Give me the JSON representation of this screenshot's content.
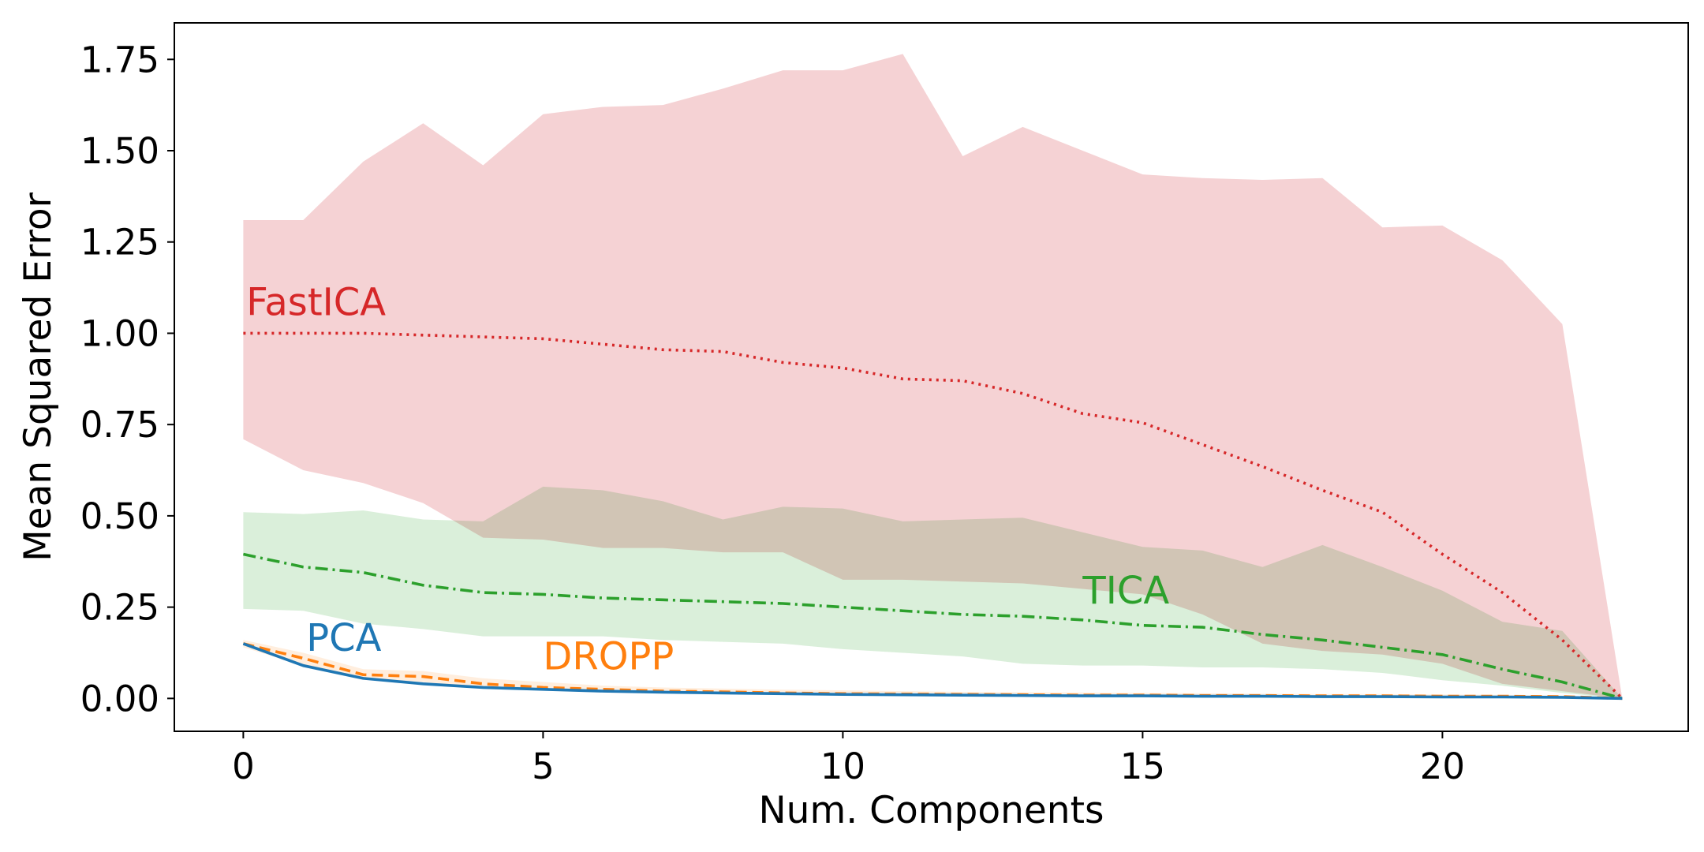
{
  "chart_data": {
    "type": "line",
    "xlabel": "Num. Components",
    "ylabel": "Mean Squared Error",
    "xlim": [
      -1.15,
      24.1
    ],
    "ylim": [
      -0.09,
      1.85
    ],
    "xticks": [
      0,
      5,
      10,
      15,
      20
    ],
    "yticks": [
      0.0,
      0.25,
      0.5,
      0.75,
      1.0,
      1.25,
      1.5,
      1.75
    ],
    "ytick_labels": [
      "0.00",
      "0.25",
      "0.50",
      "0.75",
      "1.00",
      "1.25",
      "1.50",
      "1.75"
    ],
    "grid": false,
    "legend": "none",
    "x": [
      0,
      1,
      2,
      3,
      4,
      5,
      6,
      7,
      8,
      9,
      10,
      11,
      12,
      13,
      14,
      15,
      16,
      17,
      18,
      19,
      20,
      21,
      22,
      23
    ],
    "series": [
      {
        "name": "FastICA",
        "color": "#d62728",
        "linestyle": "dotted",
        "values": [
          1.0,
          1.0,
          1.0,
          0.995,
          0.99,
          0.985,
          0.97,
          0.955,
          0.95,
          0.92,
          0.905,
          0.875,
          0.87,
          0.835,
          0.78,
          0.755,
          0.695,
          0.635,
          0.57,
          0.51,
          0.395,
          0.29,
          0.16,
          0.0
        ],
        "band_low": [
          0.71,
          0.625,
          0.59,
          0.535,
          0.44,
          0.435,
          0.412,
          0.412,
          0.4,
          0.4,
          0.325,
          0.325,
          0.32,
          0.315,
          0.3,
          0.285,
          0.23,
          0.15,
          0.13,
          0.12,
          0.095,
          0.04,
          0.02,
          0.0
        ],
        "band_high": [
          1.31,
          1.31,
          1.47,
          1.575,
          1.46,
          1.6,
          1.62,
          1.625,
          1.67,
          1.72,
          1.72,
          1.765,
          1.485,
          1.565,
          1.5,
          1.435,
          1.425,
          1.42,
          1.425,
          1.29,
          1.295,
          1.2,
          1.025,
          0.0
        ]
      },
      {
        "name": "TICA",
        "color": "#2ca02c",
        "linestyle": "dashdot",
        "values": [
          0.395,
          0.36,
          0.345,
          0.31,
          0.29,
          0.285,
          0.275,
          0.27,
          0.265,
          0.26,
          0.25,
          0.24,
          0.23,
          0.225,
          0.215,
          0.2,
          0.195,
          0.175,
          0.16,
          0.14,
          0.12,
          0.08,
          0.045,
          0.0
        ],
        "band_low": [
          0.245,
          0.24,
          0.205,
          0.19,
          0.17,
          0.17,
          0.17,
          0.16,
          0.155,
          0.15,
          0.135,
          0.125,
          0.115,
          0.095,
          0.09,
          0.09,
          0.085,
          0.085,
          0.08,
          0.07,
          0.05,
          0.035,
          0.015,
          0.0
        ],
        "band_high": [
          0.51,
          0.505,
          0.515,
          0.49,
          0.485,
          0.58,
          0.57,
          0.54,
          0.49,
          0.525,
          0.52,
          0.485,
          0.49,
          0.495,
          0.455,
          0.415,
          0.405,
          0.36,
          0.42,
          0.36,
          0.295,
          0.21,
          0.185,
          0.0
        ]
      },
      {
        "name": "DROPP",
        "color": "#ff7f0e",
        "linestyle": "dashed",
        "values": [
          0.15,
          0.11,
          0.065,
          0.06,
          0.04,
          0.03,
          0.025,
          0.02,
          0.018,
          0.015,
          0.013,
          0.012,
          0.011,
          0.01,
          0.009,
          0.009,
          0.008,
          0.008,
          0.007,
          0.007,
          0.006,
          0.006,
          0.005,
          0.0
        ],
        "band_low": [
          0.14,
          0.09,
          0.055,
          0.045,
          0.03,
          0.022,
          0.018,
          0.014,
          0.012,
          0.01,
          0.009,
          0.008,
          0.007,
          0.006,
          0.006,
          0.005,
          0.005,
          0.004,
          0.004,
          0.004,
          0.003,
          0.003,
          0.002,
          0.0
        ],
        "band_high": [
          0.16,
          0.125,
          0.08,
          0.075,
          0.055,
          0.045,
          0.035,
          0.03,
          0.027,
          0.024,
          0.022,
          0.02,
          0.018,
          0.017,
          0.016,
          0.015,
          0.014,
          0.013,
          0.012,
          0.012,
          0.011,
          0.01,
          0.008,
          0.0
        ]
      },
      {
        "name": "PCA",
        "color": "#1f77b4",
        "linestyle": "solid",
        "values": [
          0.15,
          0.09,
          0.055,
          0.04,
          0.03,
          0.025,
          0.02,
          0.017,
          0.015,
          0.013,
          0.011,
          0.01,
          0.009,
          0.008,
          0.007,
          0.007,
          0.006,
          0.006,
          0.005,
          0.005,
          0.004,
          0.004,
          0.003,
          0.0
        ],
        "band_low": [
          0.15,
          0.088,
          0.053,
          0.038,
          0.028,
          0.023,
          0.018,
          0.015,
          0.013,
          0.011,
          0.009,
          0.008,
          0.007,
          0.006,
          0.005,
          0.005,
          0.004,
          0.004,
          0.003,
          0.003,
          0.002,
          0.002,
          0.001,
          0.0
        ],
        "band_high": [
          0.15,
          0.092,
          0.057,
          0.042,
          0.032,
          0.027,
          0.022,
          0.019,
          0.017,
          0.015,
          0.013,
          0.012,
          0.011,
          0.01,
          0.009,
          0.009,
          0.008,
          0.008,
          0.007,
          0.007,
          0.006,
          0.006,
          0.005,
          0.0
        ]
      }
    ],
    "annotations": [
      {
        "text": "FastICA",
        "series": "FastICA",
        "x": 0.05,
        "y": 1.05
      },
      {
        "text": "TICA",
        "series": "TICA",
        "x": 14.0,
        "y": 0.26
      },
      {
        "text": "PCA",
        "series": "PCA",
        "x": 1.05,
        "y": 0.13
      },
      {
        "text": "DROPP",
        "series": "DROPP",
        "x": 5.0,
        "y": 0.08
      }
    ]
  }
}
